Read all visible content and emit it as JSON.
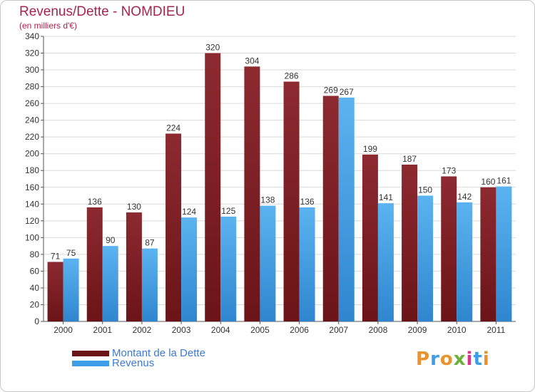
{
  "title": "Revenus/Dette - NOMDIEU",
  "subtitle": "(en milliers d'€)",
  "logo_text": "Proxiti",
  "colors": {
    "dette": "#6b1418",
    "revenus": "#3d9de6",
    "title": "#a8244e",
    "legend_text": "#3b7ad9"
  },
  "chart_data": {
    "type": "bar",
    "categories": [
      "2000",
      "2001",
      "2002",
      "2003",
      "2004",
      "2005",
      "2006",
      "2007",
      "2008",
      "2009",
      "2010",
      "2011"
    ],
    "series": [
      {
        "name": "Montant de la Dette",
        "values": [
          71,
          136,
          130,
          224,
          320,
          304,
          286,
          269,
          199,
          187,
          173,
          160
        ]
      },
      {
        "name": "Revenus",
        "values": [
          75,
          90,
          87,
          124,
          125,
          138,
          136,
          267,
          141,
          150,
          142,
          161
        ]
      }
    ],
    "ylim": [
      0,
      340
    ],
    "yticks": [
      0,
      20,
      40,
      60,
      80,
      100,
      120,
      140,
      160,
      180,
      200,
      220,
      240,
      260,
      280,
      300,
      320,
      340
    ],
    "grid": true,
    "legend_position": "bottom-left"
  }
}
